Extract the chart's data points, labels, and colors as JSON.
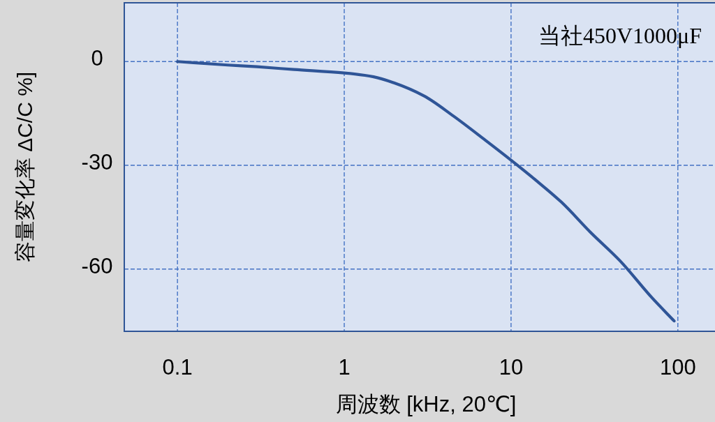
{
  "chart_data": {
    "type": "line",
    "annotations": [
      "当社450V1000μF"
    ],
    "xlabel": "周波数 [kHz, 20℃]",
    "ylabel": "容量変化率 ΔC/C %]",
    "x": [
      0.1,
      0.2,
      0.3,
      0.5,
      1,
      1.5,
      2,
      3,
      4.5,
      7,
      10,
      14,
      20,
      30,
      45,
      70,
      95
    ],
    "series": [
      {
        "color": "#2f5597",
        "values": [
          0,
          -1,
          -1.5,
          -2.3,
          -3.3,
          -4.4,
          -6.2,
          -9.9,
          -15.7,
          -22.7,
          -28.5,
          -34.2,
          -40.6,
          -49.4,
          -57.6,
          -68.3,
          -75
        ]
      }
    ],
    "log": "x",
    "xlim": [
      0.048,
      167
    ],
    "ylim": [
      -78,
      17
    ],
    "xticks": [
      0.1,
      1,
      10,
      100
    ],
    "yticks": [
      0,
      -30,
      -60
    ],
    "grid": true
  }
}
